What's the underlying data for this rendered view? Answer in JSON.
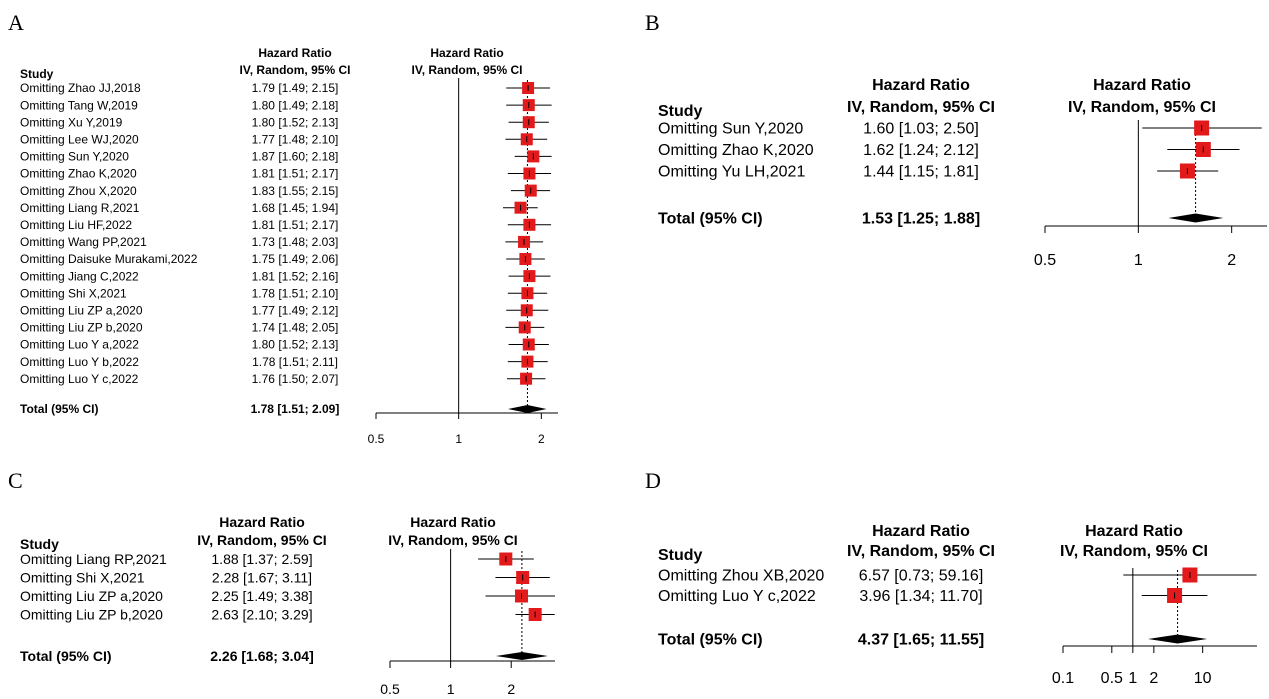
{
  "panels": [
    {
      "letter": "A"
    },
    {
      "letter": "B"
    },
    {
      "letter": "C"
    },
    {
      "letter": "D"
    }
  ],
  "chart_data": [
    {
      "type": "forest",
      "panel": "A",
      "study_header": "Study",
      "hr_header_1": "Hazard Ratio",
      "hr_header_2": "IV, Random, 95% CI",
      "plot_header_1": "Hazard Ratio",
      "plot_header_2": "IV, Random, 95% CI",
      "x_scale": "log",
      "xlim": [
        0.5,
        2.3
      ],
      "ref_line": 1,
      "x_ticks": [
        0.5,
        1,
        2
      ],
      "x_tick_labels": [
        "0.5",
        "1",
        "2"
      ],
      "studies": [
        {
          "label": "Omitting Zhao JJ,2018",
          "ci_text": "1.79 [1.49; 2.15]",
          "hr": 1.79,
          "lo": 1.49,
          "hi": 2.15
        },
        {
          "label": "Omitting Tang W,2019",
          "ci_text": "1.80 [1.49; 2.18]",
          "hr": 1.8,
          "lo": 1.49,
          "hi": 2.18
        },
        {
          "label": "Omitting Xu Y,2019",
          "ci_text": "1.80 [1.52; 2.13]",
          "hr": 1.8,
          "lo": 1.52,
          "hi": 2.13
        },
        {
          "label": "Omitting Lee WJ,2020",
          "ci_text": "1.77 [1.48; 2.10]",
          "hr": 1.77,
          "lo": 1.48,
          "hi": 2.1
        },
        {
          "label": "Omitting Sun Y,2020",
          "ci_text": "1.87 [1.60; 2.18]",
          "hr": 1.87,
          "lo": 1.6,
          "hi": 2.18
        },
        {
          "label": "Omitting Zhao K,2020",
          "ci_text": "1.81 [1.51; 2.17]",
          "hr": 1.81,
          "lo": 1.51,
          "hi": 2.17
        },
        {
          "label": "Omitting Zhou X,2020",
          "ci_text": "1.83 [1.55; 2.15]",
          "hr": 1.83,
          "lo": 1.55,
          "hi": 2.15
        },
        {
          "label": "Omitting Liang R,2021",
          "ci_text": "1.68 [1.45; 1.94]",
          "hr": 1.68,
          "lo": 1.45,
          "hi": 1.94
        },
        {
          "label": "Omitting Liu HF,2022",
          "ci_text": "1.81 [1.51; 2.17]",
          "hr": 1.81,
          "lo": 1.51,
          "hi": 2.17
        },
        {
          "label": "Omitting Wang PP,2021",
          "ci_text": "1.73 [1.48; 2.03]",
          "hr": 1.73,
          "lo": 1.48,
          "hi": 2.03
        },
        {
          "label": "Omitting Daisuke Murakami,2022",
          "ci_text": "1.75 [1.49; 2.06]",
          "hr": 1.75,
          "lo": 1.49,
          "hi": 2.06
        },
        {
          "label": "Omitting Jiang C,2022",
          "ci_text": "1.81 [1.52; 2.16]",
          "hr": 1.81,
          "lo": 1.52,
          "hi": 2.16
        },
        {
          "label": "Omitting Shi X,2021",
          "ci_text": "1.78 [1.51; 2.10]",
          "hr": 1.78,
          "lo": 1.51,
          "hi": 2.1
        },
        {
          "label": "Omitting Liu ZP a,2020",
          "ci_text": "1.77 [1.49; 2.12]",
          "hr": 1.77,
          "lo": 1.49,
          "hi": 2.12
        },
        {
          "label": "Omitting Liu ZP b,2020",
          "ci_text": "1.74 [1.48; 2.05]",
          "hr": 1.74,
          "lo": 1.48,
          "hi": 2.05
        },
        {
          "label": "Omitting Luo Y a,2022",
          "ci_text": "1.80 [1.52; 2.13]",
          "hr": 1.8,
          "lo": 1.52,
          "hi": 2.13
        },
        {
          "label": "Omitting Luo Y b,2022",
          "ci_text": "1.78 [1.51; 2.11]",
          "hr": 1.78,
          "lo": 1.51,
          "hi": 2.11
        },
        {
          "label": "Omitting Luo Y c,2022",
          "ci_text": "1.76 [1.50; 2.07]",
          "hr": 1.76,
          "lo": 1.5,
          "hi": 2.07
        }
      ],
      "total": {
        "label": "Total (95% CI)",
        "ci_text": "1.78 [1.51; 2.09]",
        "hr": 1.78,
        "lo": 1.51,
        "hi": 2.09
      },
      "colors": {
        "box": "#e31a1c",
        "diamond": "#000000"
      }
    },
    {
      "type": "forest",
      "panel": "B",
      "study_header": "Study",
      "hr_header_1": "Hazard Ratio",
      "hr_header_2": "IV, Random, 95% CI",
      "plot_header_1": "Hazard Ratio",
      "plot_header_2": "IV, Random, 95% CI",
      "x_scale": "log",
      "xlim": [
        0.5,
        2.6
      ],
      "ref_line": 1,
      "x_ticks": [
        0.5,
        1,
        2
      ],
      "x_tick_labels": [
        "0.5",
        "1",
        "2"
      ],
      "studies": [
        {
          "label": "Omitting Sun Y,2020",
          "ci_text": "1.60 [1.03; 2.50]",
          "hr": 1.6,
          "lo": 1.03,
          "hi": 2.5
        },
        {
          "label": "Omitting Zhao K,2020",
          "ci_text": "1.62 [1.24; 2.12]",
          "hr": 1.62,
          "lo": 1.24,
          "hi": 2.12
        },
        {
          "label": "Omitting Yu LH,2021",
          "ci_text": "1.44 [1.15; 1.81]",
          "hr": 1.44,
          "lo": 1.15,
          "hi": 1.81
        }
      ],
      "total": {
        "label": "Total (95% CI)",
        "ci_text": "1.53 [1.25; 1.88]",
        "hr": 1.53,
        "lo": 1.25,
        "hi": 1.88
      },
      "colors": {
        "box": "#e31a1c",
        "diamond": "#000000"
      }
    },
    {
      "type": "forest",
      "panel": "C",
      "study_header": "Study",
      "hr_header_1": "Hazard Ratio",
      "hr_header_2": "IV, Random, 95% CI",
      "plot_header_1": "Hazard Ratio",
      "plot_header_2": "IV, Random, 95% CI",
      "x_scale": "log",
      "xlim": [
        0.5,
        3.3
      ],
      "ref_line": 1,
      "x_ticks": [
        0.5,
        1,
        2
      ],
      "x_tick_labels": [
        "0.5",
        "1",
        "2"
      ],
      "studies": [
        {
          "label": "Omitting Liang RP,2021",
          "ci_text": "1.88 [1.37; 2.59]",
          "hr": 1.88,
          "lo": 1.37,
          "hi": 2.59
        },
        {
          "label": "Omitting Shi X,2021",
          "ci_text": "2.28 [1.67; 3.11]",
          "hr": 2.28,
          "lo": 1.67,
          "hi": 3.11
        },
        {
          "label": "Omitting Liu ZP a,2020",
          "ci_text": "2.25 [1.49; 3.38]",
          "hr": 2.25,
          "lo": 1.49,
          "hi": 3.38
        },
        {
          "label": "Omitting Liu ZP b,2020",
          "ci_text": "2.63 [2.10; 3.29]",
          "hr": 2.63,
          "lo": 2.1,
          "hi": 3.29
        }
      ],
      "total": {
        "label": "Total (95% CI)",
        "ci_text": "2.26 [1.68; 3.04]",
        "hr": 2.26,
        "lo": 1.68,
        "hi": 3.04
      },
      "colors": {
        "box": "#e31a1c",
        "diamond": "#000000"
      }
    },
    {
      "type": "forest",
      "panel": "D",
      "study_header": "Study",
      "hr_header_1": "Hazard Ratio",
      "hr_header_2": "IV, Random, 95% CI",
      "plot_header_1": "Hazard Ratio",
      "plot_header_2": "IV, Random, 95% CI",
      "x_scale": "log",
      "xlim": [
        0.1,
        60
      ],
      "ref_line": 1,
      "x_ticks": [
        0.1,
        0.5,
        1,
        2,
        10
      ],
      "x_tick_labels": [
        "0.1",
        "0.5",
        "1",
        "2",
        "10"
      ],
      "studies": [
        {
          "label": "Omitting Zhou XB,2020",
          "ci_text": "6.57 [0.73; 59.16]",
          "hr": 6.57,
          "lo": 0.73,
          "hi": 59.16
        },
        {
          "label": "Omitting Luo Y c,2022",
          "ci_text": "3.96 [1.34; 11.70]",
          "hr": 3.96,
          "lo": 1.34,
          "hi": 11.7
        }
      ],
      "total": {
        "label": "Total (95% CI)",
        "ci_text": "4.37 [1.65; 11.55]",
        "hr": 4.37,
        "lo": 1.65,
        "hi": 11.55
      },
      "colors": {
        "box": "#e31a1c",
        "diamond": "#000000"
      }
    }
  ]
}
